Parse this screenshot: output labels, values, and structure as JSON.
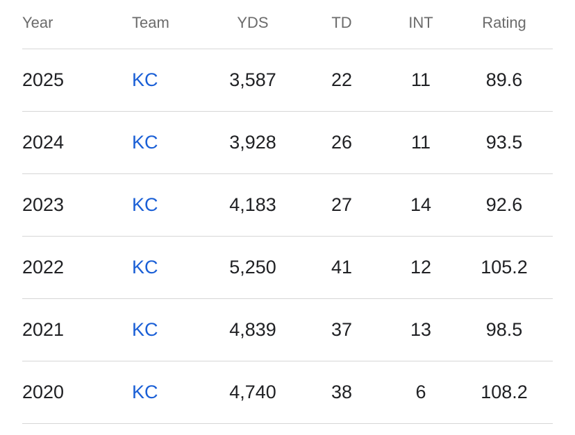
{
  "columns": {
    "year": "Year",
    "team": "Team",
    "yds": "YDS",
    "td": "TD",
    "int": "INT",
    "rating": "Rating"
  },
  "rows": [
    {
      "year": "2025",
      "team": "KC",
      "yds": "3,587",
      "td": "22",
      "int": "11",
      "rating": "89.6"
    },
    {
      "year": "2024",
      "team": "KC",
      "yds": "3,928",
      "td": "26",
      "int": "11",
      "rating": "93.5"
    },
    {
      "year": "2023",
      "team": "KC",
      "yds": "4,183",
      "td": "27",
      "int": "14",
      "rating": "92.6"
    },
    {
      "year": "2022",
      "team": "KC",
      "yds": "5,250",
      "td": "41",
      "int": "12",
      "rating": "105.2"
    },
    {
      "year": "2021",
      "team": "KC",
      "yds": "4,839",
      "td": "37",
      "int": "13",
      "rating": "98.5"
    },
    {
      "year": "2020",
      "team": "KC",
      "yds": "4,740",
      "td": "38",
      "int": "6",
      "rating": "108.2"
    }
  ],
  "colors": {
    "header_text": "#6b6b6b",
    "body_text": "#202124",
    "link": "#1a5fd6",
    "divider": "#d6d6d6"
  }
}
